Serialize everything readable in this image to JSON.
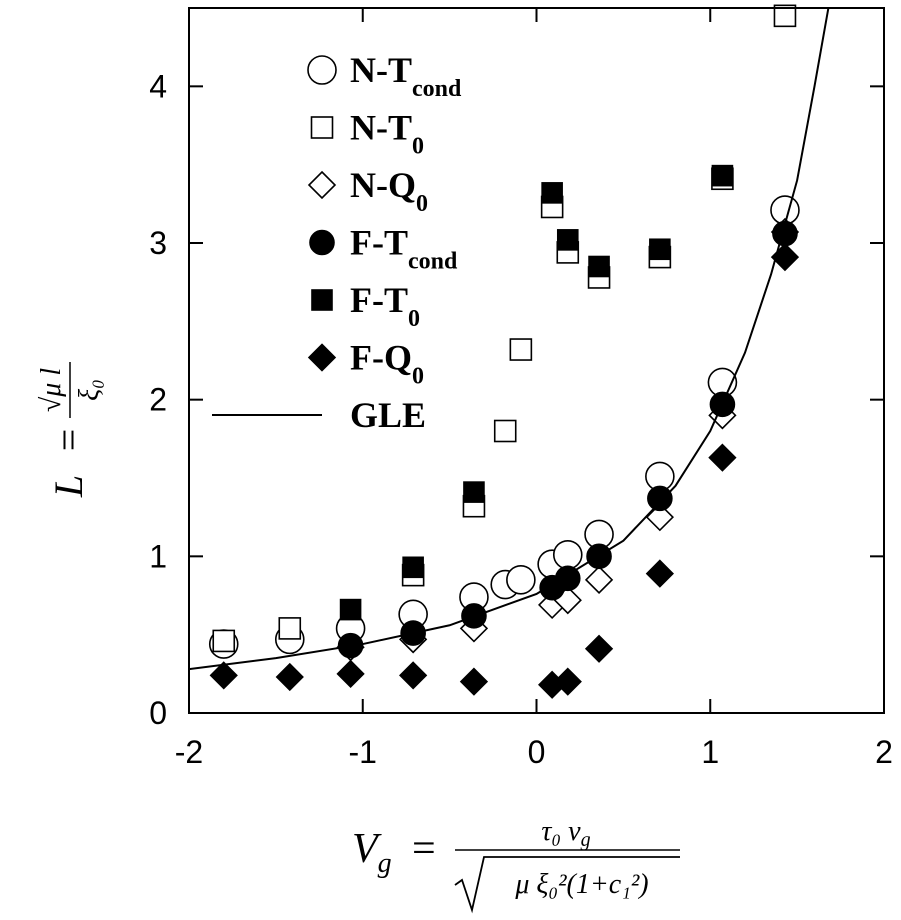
{
  "chart_data": {
    "type": "scatter",
    "xlim": [
      -2,
      2
    ],
    "ylim": [
      0,
      4.5
    ],
    "xticks": [
      -2,
      -1,
      0,
      1,
      2
    ],
    "yticks": [
      0,
      1,
      2,
      3,
      4
    ],
    "xlabel": {
      "var": "V",
      "var_sub": "g",
      "eq": "=",
      "num": "τ₀ v",
      "num_sub": "g",
      "den": "μ ξ₀²(1+c₁²)"
    },
    "ylabel": {
      "var": "L",
      "eq": "=",
      "num": "√μ l",
      "den": "ξ₀"
    },
    "legend": "upper left",
    "series": [
      {
        "name": "N-T",
        "name_sub": "cond",
        "marker": "circle",
        "filled": false,
        "color": "#000000",
        "x": [
          -1.8,
          -1.42,
          -1.07,
          -0.71,
          -0.36,
          -0.18,
          -0.09,
          0.09,
          0.18,
          0.36,
          0.71,
          1.07,
          1.43
        ],
        "values": [
          0.44,
          0.47,
          0.54,
          0.63,
          0.74,
          0.82,
          0.85,
          0.95,
          1.01,
          1.14,
          1.51,
          2.11,
          3.21
        ]
      },
      {
        "name": "N-T",
        "name_sub": "0",
        "marker": "square",
        "filled": false,
        "color": "#000000",
        "x": [
          -1.8,
          -1.42,
          -0.71,
          -0.36,
          -0.18,
          -0.09,
          0.09,
          0.18,
          0.36,
          0.71,
          1.07,
          1.43
        ],
        "values": [
          0.46,
          0.54,
          0.88,
          1.32,
          1.8,
          2.32,
          3.23,
          2.94,
          2.78,
          2.91,
          3.41,
          4.45
        ]
      },
      {
        "name": "N-Q",
        "name_sub": "0",
        "marker": "diamond",
        "filled": false,
        "color": "#000000",
        "x": [
          -1.07,
          -0.71,
          -0.36,
          0.09,
          0.18,
          0.36,
          0.71,
          1.07,
          1.43
        ],
        "values": [
          0.42,
          0.47,
          0.54,
          0.69,
          0.72,
          0.85,
          1.25,
          1.9,
          3.07
        ]
      },
      {
        "name": "F-T",
        "name_sub": "cond",
        "marker": "circle",
        "filled": true,
        "color": "#000000",
        "x": [
          -1.07,
          -0.71,
          -0.36,
          0.09,
          0.18,
          0.36,
          0.71,
          1.07,
          1.43
        ],
        "values": [
          0.43,
          0.51,
          0.62,
          0.8,
          0.86,
          1.0,
          1.37,
          1.97,
          3.06
        ]
      },
      {
        "name": "F-T",
        "name_sub": "0",
        "marker": "square",
        "filled": true,
        "color": "#000000",
        "x": [
          -1.07,
          -0.71,
          -0.36,
          0.09,
          0.18,
          0.36,
          0.71,
          1.07
        ],
        "values": [
          0.66,
          0.93,
          1.41,
          3.32,
          3.02,
          2.85,
          2.96,
          3.43
        ]
      },
      {
        "name": "F-Q",
        "name_sub": "0",
        "marker": "diamond",
        "filled": true,
        "color": "#000000",
        "x": [
          -1.8,
          -1.42,
          -1.07,
          -0.71,
          -0.36,
          0.09,
          0.18,
          0.36,
          0.71,
          1.07,
          1.43
        ],
        "values": [
          0.24,
          0.23,
          0.25,
          0.24,
          0.2,
          0.18,
          0.2,
          0.41,
          0.89,
          1.63,
          2.91
        ]
      },
      {
        "name": "GLE",
        "marker": "line",
        "color": "#000000",
        "x": [
          -2,
          -1.5,
          -1,
          -0.5,
          0,
          0.5,
          0.8,
          1,
          1.2,
          1.35,
          1.5,
          1.6,
          1.68
        ],
        "values": [
          0.28,
          0.35,
          0.44,
          0.56,
          0.76,
          1.1,
          1.45,
          1.8,
          2.3,
          2.8,
          3.4,
          4.0,
          4.5
        ]
      }
    ]
  }
}
